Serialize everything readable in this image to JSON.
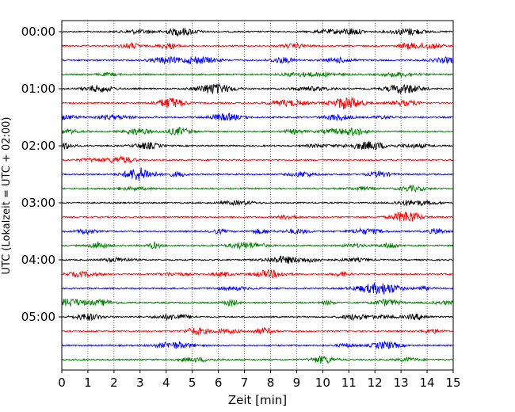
{
  "chart_data": {
    "type": "line",
    "title": "",
    "xlabel": "Zeit  [min]",
    "ylabel": "UTC (Lokalzeit = UTC + 02:00)",
    "xlim": [
      0,
      15
    ],
    "x_ticks": [
      "0",
      "1",
      "2",
      "3",
      "4",
      "5",
      "6",
      "7",
      "8",
      "9",
      "10",
      "11",
      "12",
      "13",
      "14",
      "15"
    ],
    "y_tick_labels": [
      "00:00",
      "01:00",
      "02:00",
      "03:00",
      "04:00",
      "05:00"
    ],
    "trace_interval_min": 15,
    "trace_count": 24,
    "trace_colors": [
      "#000000",
      "#ff0000",
      "#0000ff",
      "#008000"
    ],
    "grid": "vertical dotted at each minute",
    "traces": [
      {
        "start": "00:00",
        "color": "#000000"
      },
      {
        "start": "00:15",
        "color": "#ff0000"
      },
      {
        "start": "00:30",
        "color": "#0000ff"
      },
      {
        "start": "00:45",
        "color": "#008000"
      },
      {
        "start": "01:00",
        "color": "#000000"
      },
      {
        "start": "01:15",
        "color": "#ff0000"
      },
      {
        "start": "01:30",
        "color": "#0000ff"
      },
      {
        "start": "01:45",
        "color": "#008000"
      },
      {
        "start": "02:00",
        "color": "#000000"
      },
      {
        "start": "02:15",
        "color": "#ff0000"
      },
      {
        "start": "02:30",
        "color": "#0000ff"
      },
      {
        "start": "02:45",
        "color": "#008000"
      },
      {
        "start": "03:00",
        "color": "#000000"
      },
      {
        "start": "03:15",
        "color": "#ff0000"
      },
      {
        "start": "03:30",
        "color": "#0000ff"
      },
      {
        "start": "03:45",
        "color": "#008000"
      },
      {
        "start": "04:00",
        "color": "#000000"
      },
      {
        "start": "04:15",
        "color": "#ff0000"
      },
      {
        "start": "04:30",
        "color": "#0000ff"
      },
      {
        "start": "04:45",
        "color": "#008000"
      },
      {
        "start": "05:00",
        "color": "#000000"
      },
      {
        "start": "05:15",
        "color": "#ff0000"
      },
      {
        "start": "05:30",
        "color": "#0000ff"
      },
      {
        "start": "05:45",
        "color": "#008000"
      }
    ]
  }
}
